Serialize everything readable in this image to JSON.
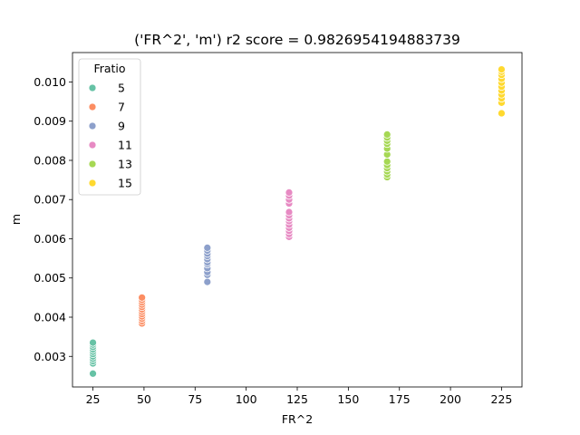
{
  "chart_data": {
    "type": "scatter",
    "title": "('FR^2', 'm') r2 score = 0.9826954194883739",
    "xlabel": "FR^2",
    "ylabel": "m",
    "xlim": [
      15,
      235
    ],
    "ylim": [
      0.00222,
      0.01075
    ],
    "x_ticks": [
      25,
      50,
      75,
      100,
      125,
      150,
      175,
      200,
      225
    ],
    "x_tick_labels": [
      "25",
      "50",
      "75",
      "100",
      "125",
      "150",
      "175",
      "200",
      "225"
    ],
    "y_ticks": [
      0.003,
      0.004,
      0.005,
      0.006,
      0.007,
      0.008,
      0.009,
      0.01
    ],
    "y_tick_labels": [
      "0.003",
      "0.004",
      "0.005",
      "0.006",
      "0.007",
      "0.008",
      "0.009",
      "0.010"
    ],
    "grid": false,
    "legend": {
      "title": "Fratio",
      "placement": "upper-left"
    },
    "series": [
      {
        "name": "5",
        "color": "#66c2a5",
        "x": 25,
        "y": [
          0.00256,
          0.00282,
          0.00288,
          0.00294,
          0.003,
          0.00306,
          0.00312,
          0.00318,
          0.00324,
          0.0033,
          0.00335
        ]
      },
      {
        "name": "7",
        "color": "#fc8d62",
        "x": 49,
        "y": [
          0.00384,
          0.0039,
          0.00396,
          0.00402,
          0.00408,
          0.00414,
          0.0042,
          0.00426,
          0.00432,
          0.00438,
          0.00444,
          0.0045
        ]
      },
      {
        "name": "9",
        "color": "#8da0cb",
        "x": 81,
        "y": [
          0.0049,
          0.00508,
          0.00515,
          0.00525,
          0.00535,
          0.0054,
          0.00548,
          0.00556,
          0.00562,
          0.0057,
          0.00577
        ]
      },
      {
        "name": "11",
        "color": "#e78ac3",
        "x": 121,
        "y": [
          0.00605,
          0.00612,
          0.0062,
          0.00628,
          0.00636,
          0.00645,
          0.00652,
          0.0066,
          0.00668,
          0.0069,
          0.007,
          0.0071,
          0.00718
        ]
      },
      {
        "name": "13",
        "color": "#a6d854",
        "x": 169,
        "y": [
          0.00757,
          0.00764,
          0.00772,
          0.0078,
          0.00788,
          0.00797,
          0.00815,
          0.0083,
          0.00842,
          0.0085,
          0.00858,
          0.00866
        ]
      },
      {
        "name": "15",
        "color": "#ffd92f",
        "x": 225,
        "y": [
          0.0092,
          0.00947,
          0.00958,
          0.00968,
          0.00978,
          0.00988,
          0.00998,
          0.01008,
          0.01018,
          0.01026,
          0.01032
        ]
      }
    ]
  }
}
